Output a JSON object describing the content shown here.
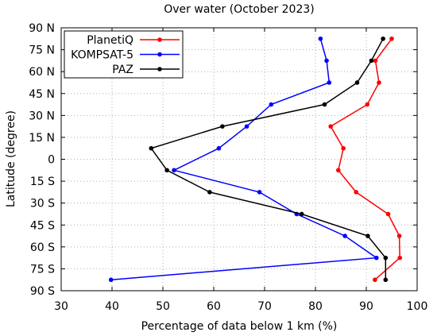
{
  "chart_data": {
    "type": "line",
    "title": "Over water (October 2023)",
    "xlabel": "Percentage of data below 1 km (%)",
    "ylabel": "Latitude (degree)",
    "xlim": [
      30,
      100
    ],
    "ylim": [
      -90,
      90
    ],
    "x_ticks": [
      30,
      40,
      50,
      60,
      70,
      80,
      90,
      100
    ],
    "x_tick_labels": [
      "30",
      "40",
      "50",
      "60",
      "70",
      "80",
      "90",
      "100"
    ],
    "y_ticks": [
      90,
      75,
      60,
      45,
      30,
      15,
      0,
      -15,
      -30,
      -45,
      -60,
      -75,
      -90
    ],
    "y_tick_labels": [
      "90 N",
      "75 N",
      "60 N",
      "45 N",
      "30 N",
      "15 N",
      "0",
      "15 S",
      "30 S",
      "45 S",
      "60 S",
      "75 S",
      "90 S"
    ],
    "grid": true,
    "legend_position": "top-left",
    "series": [
      {
        "name": "PlanetiQ",
        "color": "#ff0000",
        "points": [
          [
            95.0,
            82.5
          ],
          [
            91.8,
            67.5
          ],
          [
            92.5,
            52.5
          ],
          [
            90.2,
            37.5
          ],
          [
            83.0,
            22.5
          ],
          [
            85.5,
            7.5
          ],
          [
            84.5,
            -7.5
          ],
          [
            88.0,
            -22.5
          ],
          [
            94.3,
            -37.5
          ],
          [
            96.5,
            -52.5
          ],
          [
            96.6,
            -67.5
          ],
          [
            91.7,
            -82.5
          ]
        ]
      },
      {
        "name": "KOMPSAT-5",
        "color": "#0000ff",
        "points": [
          [
            81.0,
            82.5
          ],
          [
            82.2,
            67.5
          ],
          [
            82.7,
            52.5
          ],
          [
            71.3,
            37.5
          ],
          [
            66.5,
            22.5
          ],
          [
            61.0,
            7.5
          ],
          [
            52.2,
            -7.5
          ],
          [
            69.0,
            -22.5
          ],
          [
            76.3,
            -37.5
          ],
          [
            85.8,
            -52.5
          ],
          [
            92.0,
            -67.5
          ],
          [
            39.8,
            -82.5
          ]
        ]
      },
      {
        "name": "PAZ",
        "color": "#000000",
        "points": [
          [
            93.3,
            82.5
          ],
          [
            91.0,
            67.5
          ],
          [
            88.2,
            52.5
          ],
          [
            81.8,
            37.5
          ],
          [
            61.7,
            22.5
          ],
          [
            47.7,
            7.5
          ],
          [
            50.8,
            -7.5
          ],
          [
            59.2,
            -22.5
          ],
          [
            77.3,
            -37.5
          ],
          [
            90.3,
            -52.5
          ],
          [
            93.8,
            -67.5
          ],
          [
            93.8,
            -82.5
          ]
        ]
      }
    ]
  }
}
